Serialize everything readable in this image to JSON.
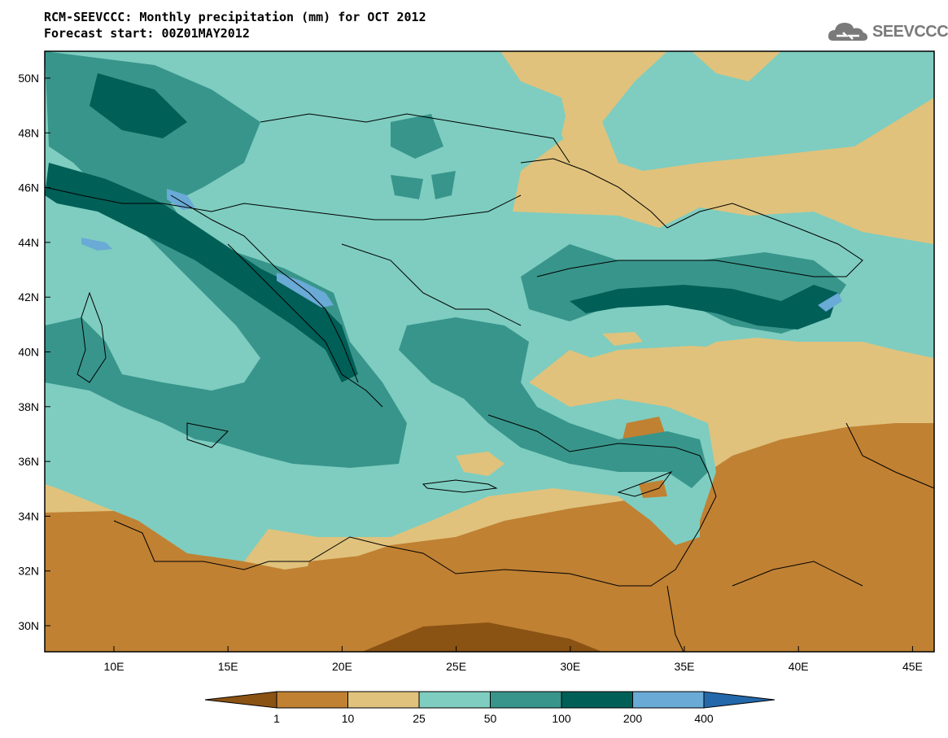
{
  "header": {
    "title_line1": "RCM-SEEVCCC: Monthly precipitation (mm) for OCT 2012",
    "title_line2": "Forecast start: 00Z01MAY2012",
    "logo_text": "SEEVCCC"
  },
  "axes": {
    "lat_labels": [
      "50N",
      "48N",
      "46N",
      "44N",
      "42N",
      "40N",
      "38N",
      "36N",
      "34N",
      "32N",
      "30N"
    ],
    "lon_labels": [
      "10E",
      "15E",
      "20E",
      "25E",
      "30E",
      "35E",
      "40E",
      "45E"
    ]
  },
  "colorbar": {
    "colors": [
      "#8a5213",
      "#c08133",
      "#e0c27c",
      "#7ecdc0",
      "#38958b",
      "#005f57",
      "#6aaad6",
      "#2368aa"
    ],
    "labels": [
      "1",
      "10",
      "25",
      "50",
      "100",
      "200",
      "400"
    ]
  }
}
